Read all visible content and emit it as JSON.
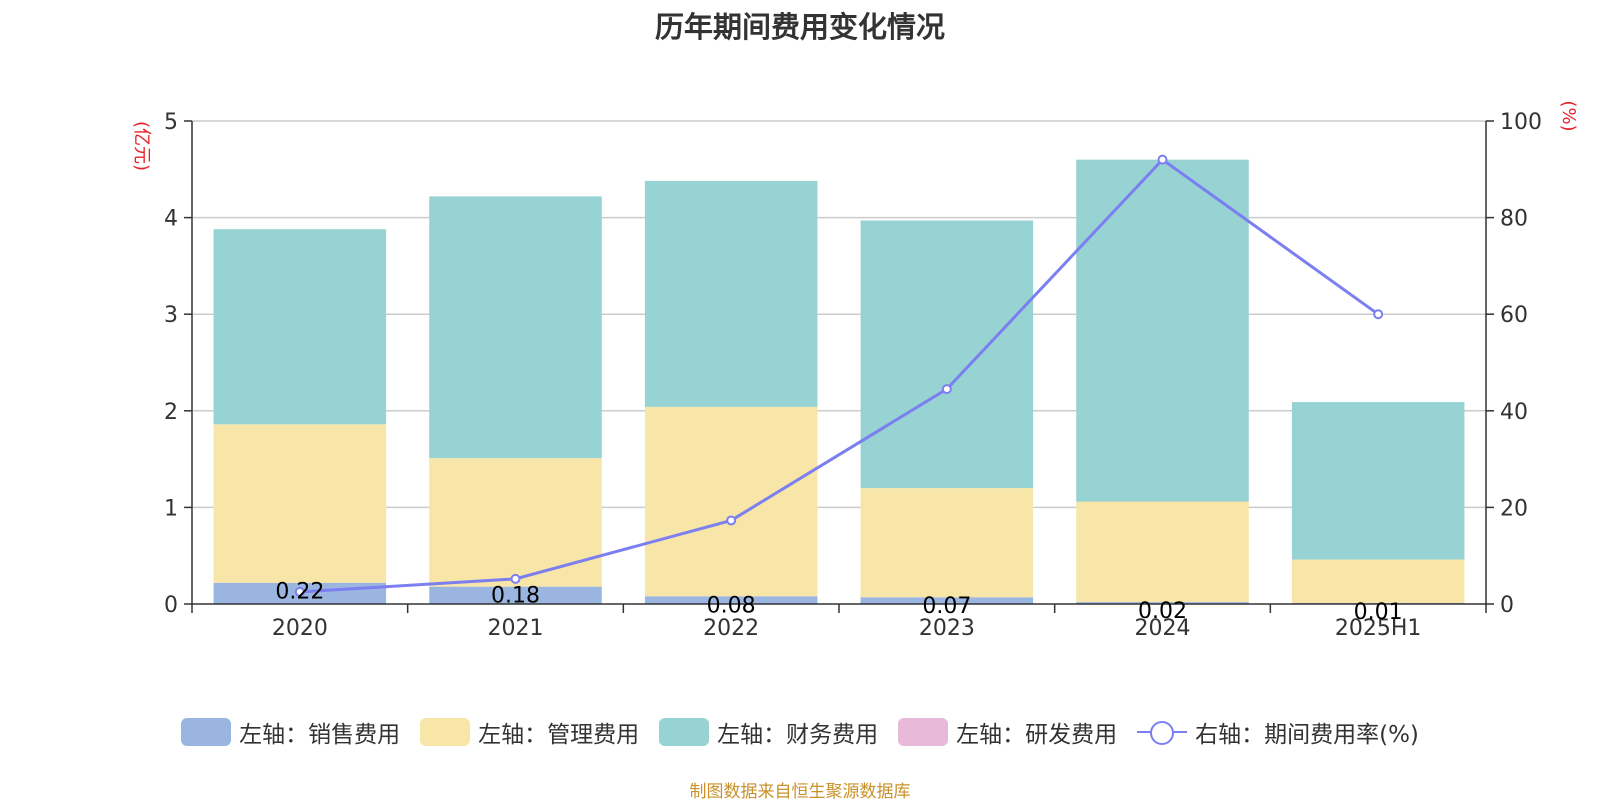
{
  "chart_data": {
    "type": "bar",
    "title": "历年期间费用变化情况",
    "categories": [
      "2020",
      "2021",
      "2022",
      "2023",
      "2024",
      "2025H1"
    ],
    "left_axis_unit": "(亿元)",
    "right_axis_unit": "(%)",
    "left_ylim": [
      0,
      5
    ],
    "left_ticks": [
      "0",
      "1",
      "2",
      "3",
      "4",
      "5"
    ],
    "right_ylim": [
      0,
      100
    ],
    "right_ticks": [
      "0",
      "20",
      "40",
      "60",
      "80",
      "100"
    ],
    "grid": true,
    "legend_position": "bottom",
    "series": [
      {
        "name": "左轴：销售费用",
        "type": "bar",
        "color": "#9bb5e1",
        "values": [
          0.22,
          0.18,
          0.08,
          0.07,
          0.02,
          0.01
        ],
        "labels": [
          "0.22",
          "0.18",
          "0.08",
          "0.07",
          "0.02",
          "0.01"
        ]
      },
      {
        "name": "左轴：管理费用",
        "type": "bar",
        "color": "#f7e6a8",
        "values": [
          1.64,
          1.33,
          1.96,
          1.13,
          1.04,
          0.45
        ]
      },
      {
        "name": "左轴：财务费用",
        "type": "bar",
        "color": "#97d3d3",
        "values": [
          2.02,
          2.71,
          2.34,
          2.77,
          3.54,
          1.63
        ]
      },
      {
        "name": "左轴：研发费用",
        "type": "bar",
        "color": "#e8b9d8",
        "values": [
          0,
          0,
          0,
          0,
          0,
          0
        ]
      },
      {
        "name": "右轴：期间费用率(%)",
        "type": "line",
        "color": "#7b7ff0",
        "values": [
          2.5,
          5.2,
          17.3,
          44.5,
          92.0,
          60.0
        ]
      }
    ]
  },
  "source": "制图数据来自恒生聚源数据库"
}
